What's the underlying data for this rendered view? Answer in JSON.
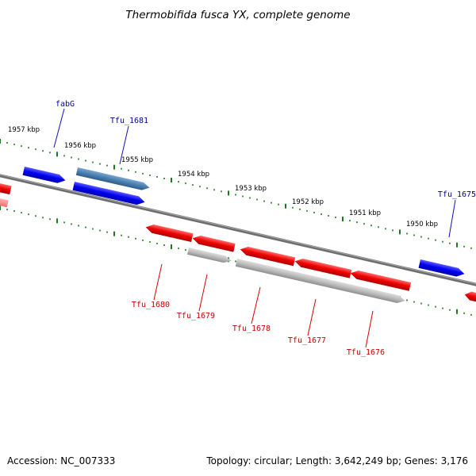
{
  "title": "Thermobifida fusca YX, complete genome",
  "footer": {
    "accession": "Accession: NC_007333",
    "summary": "Topology: circular; Length: 3,642,249 bp; Genes: 3,176"
  },
  "colors": {
    "forward_gene": "#0000ee",
    "forward_selected": "#4a7fb0",
    "reverse_gene": "#ee0000",
    "cds_gray": "#aaaaaa",
    "backbone": "#777777",
    "tick": "#1e7a1e",
    "label_forward": "#00009a",
    "label_reverse": "#cc0000"
  },
  "scale_labels": [
    "1957 kbp",
    "1956 kbp",
    "1955 kbp",
    "1954 kbp",
    "1953 kbp",
    "1952 kbp",
    "1951 kbp",
    "1950 kbp"
  ],
  "gene_labels": {
    "forward": [
      "fabG",
      "Tfu_1681",
      "Tfu_1675"
    ],
    "reverse": [
      "Tfu_1680",
      "Tfu_1679",
      "Tfu_1678",
      "Tfu_1677",
      "Tfu_1676"
    ]
  }
}
